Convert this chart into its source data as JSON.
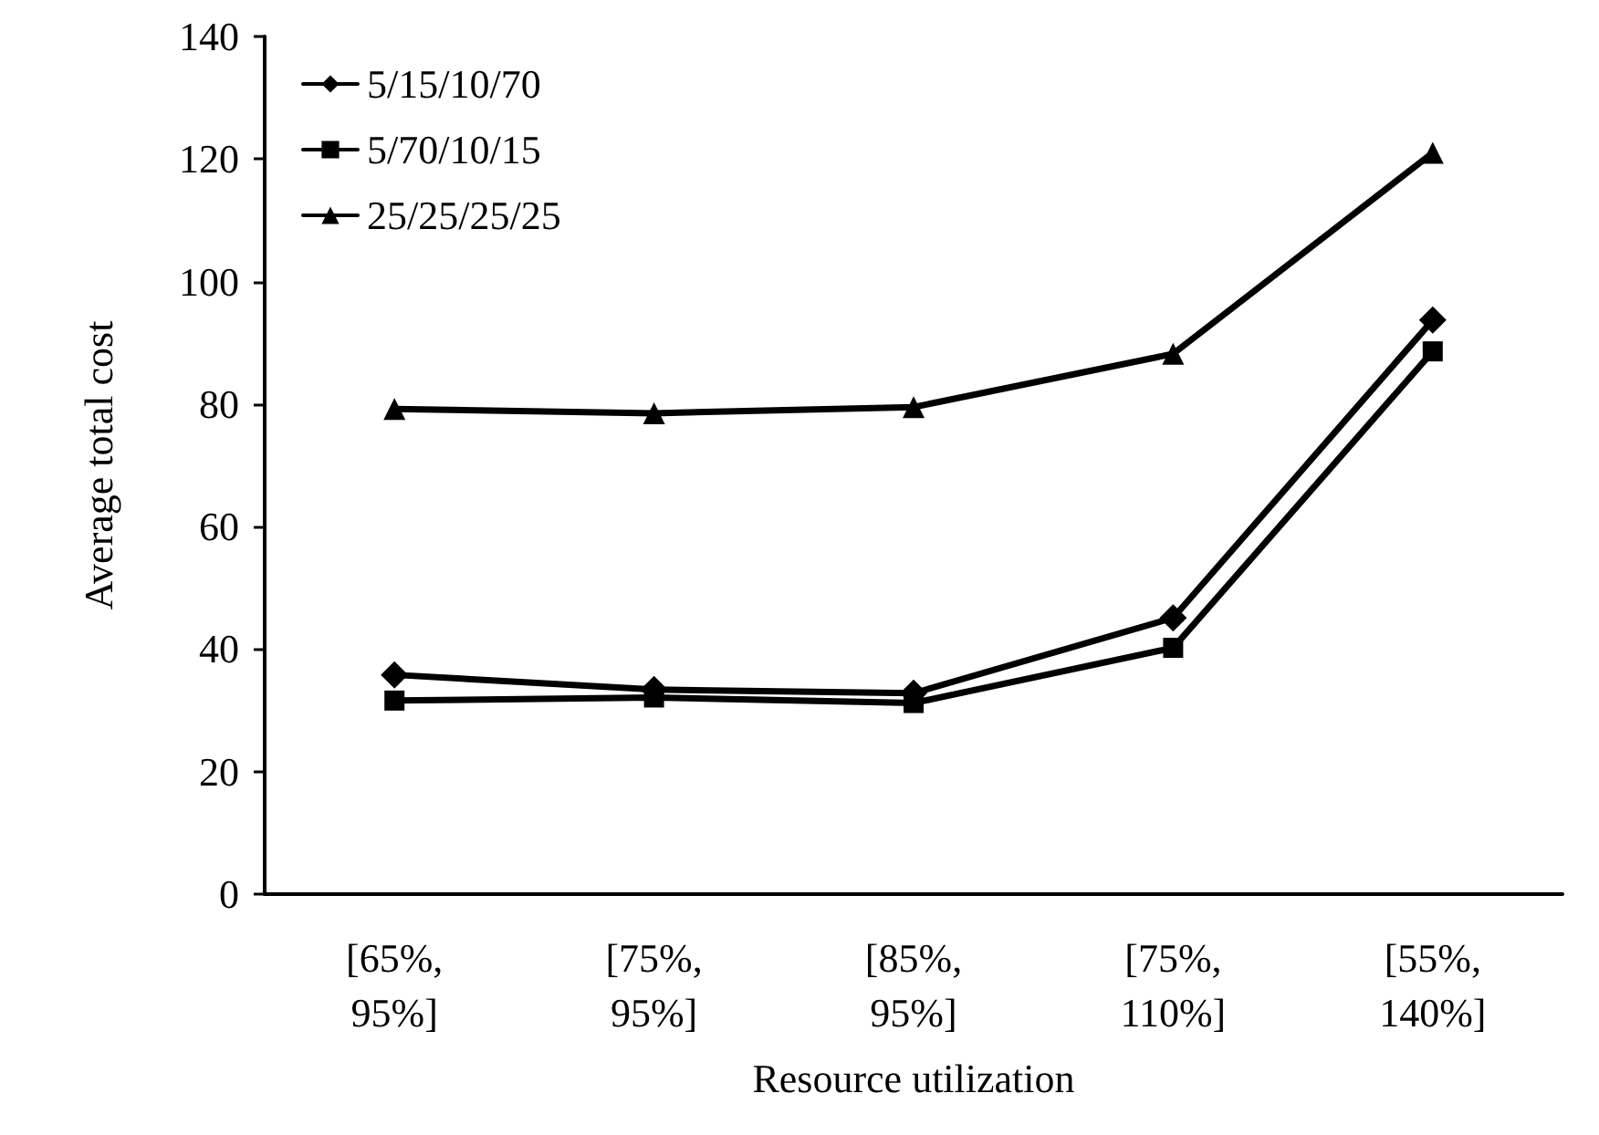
{
  "chart_data": {
    "type": "line",
    "xlabel": "Resource utilization",
    "ylabel": "Average total cost",
    "categories": [
      "[65%, 95%]",
      "[75%, 95%]",
      "[85%, 95%]",
      "[75%, 110%]",
      "[55%, 140%]"
    ],
    "series": [
      {
        "name": "5/15/10/70",
        "color": "#000000",
        "marker": "diamond",
        "values": [
          35.8,
          33.4,
          32.8,
          45.1,
          93.7
        ]
      },
      {
        "name": "5/70/10/15",
        "color": "#000000",
        "marker": "square",
        "values": [
          31.6,
          32.1,
          31.2,
          40.2,
          88.6
        ]
      },
      {
        "name": "25/25/25/25",
        "color": "#000000",
        "marker": "triangle",
        "values": [
          79.2,
          78.5,
          79.5,
          88.2,
          121
        ]
      }
    ],
    "ylim": [
      0,
      140
    ],
    "yticks": [
      0,
      20,
      40,
      60,
      80,
      100,
      120,
      140
    ],
    "grid": false,
    "legend": "top left",
    "line_style": "solid"
  }
}
